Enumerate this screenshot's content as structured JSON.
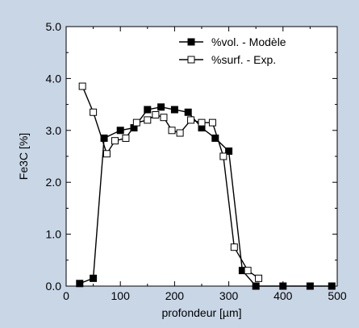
{
  "chart_data": {
    "type": "line",
    "title": "",
    "xlabel": "profondeur [µm]",
    "ylabel": "Fe3C [%]",
    "xlim": [
      0,
      500
    ],
    "ylim": [
      0,
      5.0
    ],
    "x_ticks": [
      0,
      100,
      200,
      300,
      400,
      500
    ],
    "x_tick_labels": [
      "0",
      "100",
      "200",
      "300",
      "400",
      "500"
    ],
    "y_ticks": [
      0.0,
      1.0,
      2.0,
      3.0,
      4.0,
      5.0
    ],
    "y_tick_labels": [
      "0.0",
      "1.0",
      "2.0",
      "3.0",
      "4.0",
      "5.0"
    ],
    "grid": false,
    "legend_position": "top-right",
    "series": [
      {
        "name": "%vol. - Modèle",
        "marker": "filled-square",
        "color": "#000000",
        "x": [
          25,
          50,
          70,
          100,
          125,
          150,
          175,
          200,
          225,
          250,
          275,
          300,
          325,
          350,
          400,
          450,
          490
        ],
        "y": [
          0.05,
          0.15,
          2.85,
          3.0,
          3.05,
          3.4,
          3.45,
          3.4,
          3.35,
          3.05,
          2.85,
          2.6,
          0.3,
          0.0,
          0.0,
          0.0,
          0.0
        ]
      },
      {
        "name": "%surf. - Exp.",
        "marker": "open-square",
        "color": "#000000",
        "x": [
          30,
          50,
          75,
          90,
          110,
          130,
          150,
          165,
          180,
          195,
          210,
          230,
          250,
          270,
          290,
          310,
          335,
          355
        ],
        "y": [
          3.85,
          3.35,
          2.55,
          2.8,
          2.85,
          3.15,
          3.2,
          3.3,
          3.25,
          3.0,
          2.95,
          3.2,
          3.15,
          3.15,
          2.5,
          0.75,
          0.3,
          0.15
        ]
      }
    ]
  },
  "colors": {
    "background": "#c8d6e6",
    "plot_area": "#ffffff",
    "ink": "#000000"
  }
}
